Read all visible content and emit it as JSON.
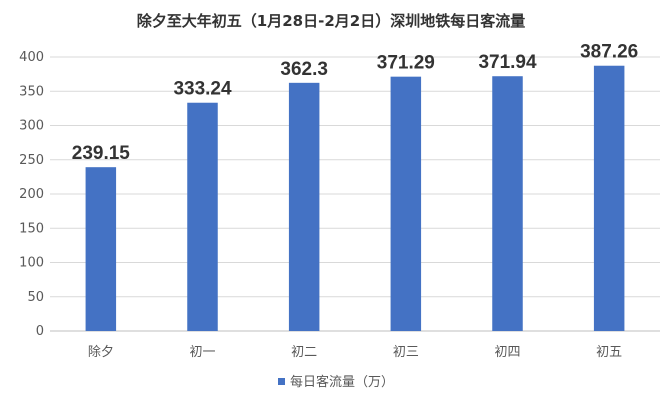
{
  "chart_data": {
    "type": "bar",
    "title": "除夕至大年初五（1月28日-2月2日）深圳地铁每日客流量",
    "categories": [
      "除夕",
      "初一",
      "初二",
      "初三",
      "初四",
      "初五"
    ],
    "series": [
      {
        "name": "每日客流量（万）",
        "values": [
          239.15,
          333.24,
          362.3,
          371.29,
          371.94,
          387.26
        ],
        "labels": [
          "239.15",
          "333.24",
          "362.3",
          "371.29",
          "371.94",
          "387.26"
        ],
        "color": "#4472c4"
      }
    ],
    "ylim": [
      0,
      400
    ],
    "yticks": [
      "0",
      "50",
      "100",
      "150",
      "200",
      "250",
      "300",
      "350",
      "400"
    ],
    "grid": true,
    "legend_position": "bottom"
  }
}
